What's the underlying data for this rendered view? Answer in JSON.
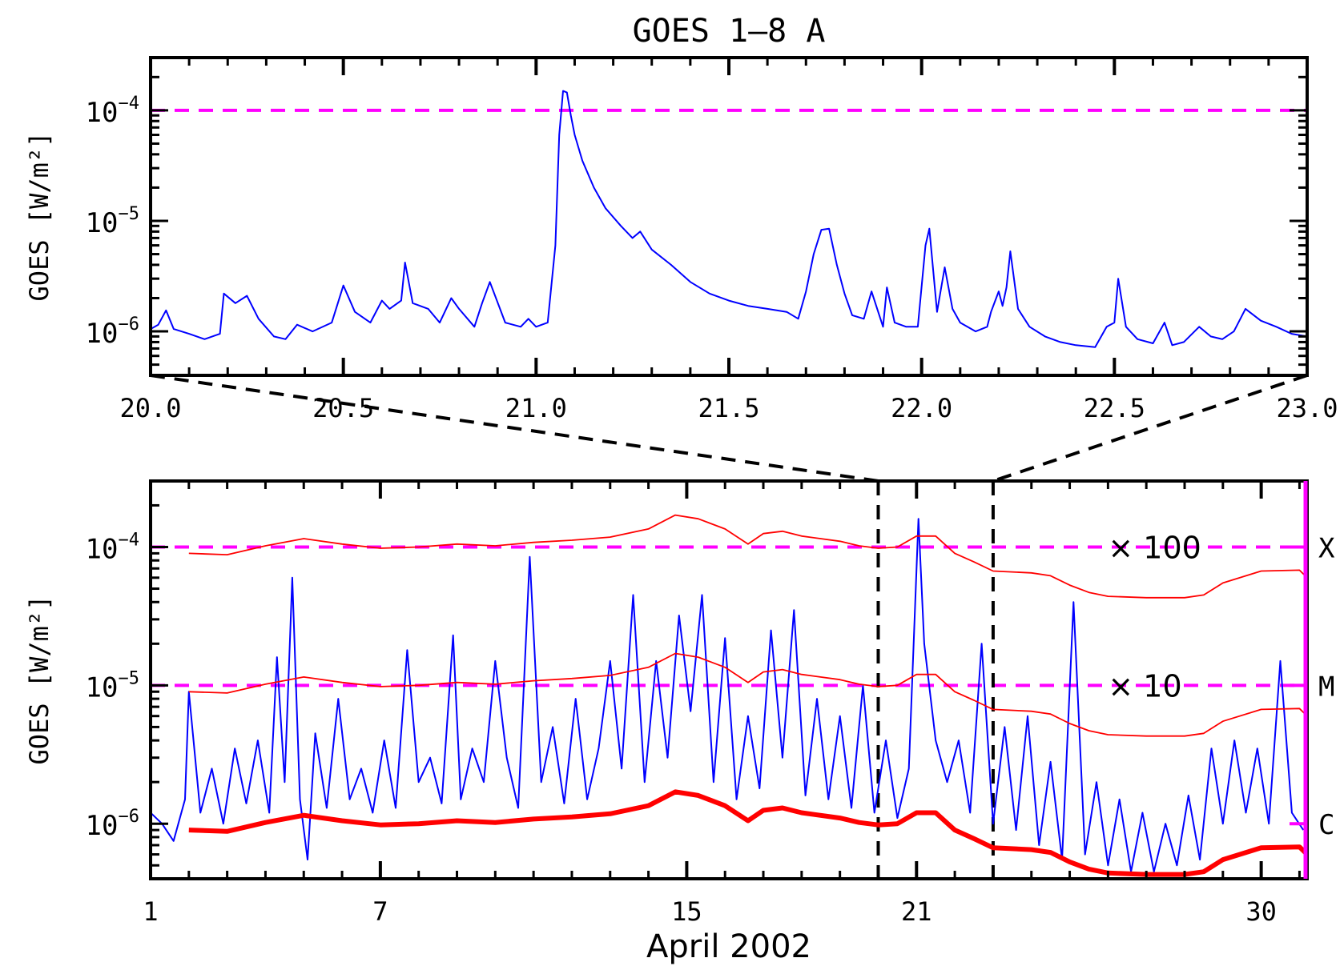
{
  "colors": {
    "flux": "#0000ff",
    "background": "#ff0000",
    "threshold": "#ff00ff",
    "frame": "#000000",
    "zoom_lines": "#000000"
  },
  "chart_data": [
    {
      "type": "line",
      "title": "GOES 1–8 A",
      "xlabel": "",
      "ylabel": "GOES [W/m²]",
      "yscale": "log",
      "xlim": [
        20.0,
        23.0
      ],
      "ylim": [
        4e-07,
        0.0003
      ],
      "xticks": [
        20.0,
        20.5,
        21.0,
        21.5,
        22.0,
        22.5,
        23.0
      ],
      "xtick_labels": [
        "20.0",
        "20.5",
        "21.0",
        "21.5",
        "22.0",
        "22.5",
        "23.0"
      ],
      "yticks": [
        1e-06,
        1e-05,
        0.0001
      ],
      "ytick_labels": [
        {
          "base": "10",
          "exp": "−6"
        },
        {
          "base": "10",
          "exp": "−5"
        },
        {
          "base": "10",
          "exp": "−4"
        }
      ],
      "grid": false,
      "hlines": [
        {
          "y": 0.0001,
          "style": "dashed",
          "color": "#ff00ff"
        }
      ],
      "series": [
        {
          "color": "#0000ff",
          "x": [
            20.0,
            20.02,
            20.04,
            20.06,
            20.1,
            20.14,
            20.18,
            20.19,
            20.22,
            20.25,
            20.28,
            20.32,
            20.35,
            20.38,
            20.42,
            20.47,
            20.5,
            20.53,
            20.57,
            20.6,
            20.62,
            20.65,
            20.66,
            20.68,
            20.72,
            20.75,
            20.78,
            20.8,
            20.84,
            20.86,
            20.88,
            20.92,
            20.96,
            20.98,
            21.0,
            21.03,
            21.05,
            21.06,
            21.07,
            21.08,
            21.09,
            21.1,
            21.12,
            21.15,
            21.18,
            21.22,
            21.25,
            21.27,
            21.3,
            21.35,
            21.4,
            21.45,
            21.5,
            21.55,
            21.6,
            21.65,
            21.68,
            21.7,
            21.72,
            21.74,
            21.76,
            21.78,
            21.8,
            21.82,
            21.85,
            21.87,
            21.9,
            21.91,
            21.93,
            21.96,
            21.99,
            22.01,
            22.02,
            22.04,
            22.06,
            22.08,
            22.1,
            22.14,
            22.17,
            22.18,
            22.2,
            22.21,
            22.22,
            22.23,
            22.25,
            22.28,
            22.32,
            22.36,
            22.4,
            22.45,
            22.48,
            22.5,
            22.51,
            22.53,
            22.56,
            22.6,
            22.63,
            22.65,
            22.68,
            22.72,
            22.75,
            22.78,
            22.81,
            22.84,
            22.88,
            22.92,
            22.96,
            23.0
          ],
          "y": [
            1.05e-06,
            1.15e-06,
            1.55e-06,
            1.05e-06,
            9.5e-07,
            8.5e-07,
            9.5e-07,
            2.2e-06,
            1.8e-06,
            2.1e-06,
            1.3e-06,
            9e-07,
            8.5e-07,
            1.15e-06,
            1e-06,
            1.2e-06,
            2.6e-06,
            1.5e-06,
            1.2e-06,
            1.9e-06,
            1.6e-06,
            1.9e-06,
            4.2e-06,
            1.8e-06,
            1.6e-06,
            1.2e-06,
            2e-06,
            1.6e-06,
            1.1e-06,
            1.8e-06,
            2.8e-06,
            1.2e-06,
            1.1e-06,
            1.3e-06,
            1.1e-06,
            1.2e-06,
            6e-06,
            6e-05,
            0.00015,
            0.000145,
            9e-05,
            6e-05,
            3.5e-05,
            2e-05,
            1.3e-05,
            9e-06,
            7e-06,
            8e-06,
            5.5e-06,
            4e-06,
            2.8e-06,
            2.2e-06,
            1.9e-06,
            1.7e-06,
            1.6e-06,
            1.5e-06,
            1.3e-06,
            2.3e-06,
            5e-06,
            8.3e-06,
            8.5e-06,
            4e-06,
            2.2e-06,
            1.4e-06,
            1.3e-06,
            2.3e-06,
            1.1e-06,
            2.5e-06,
            1.2e-06,
            1.1e-06,
            1.1e-06,
            6e-06,
            8.5e-06,
            1.5e-06,
            3.8e-06,
            1.6e-06,
            1.2e-06,
            1e-06,
            1.1e-06,
            1.5e-06,
            2.3e-06,
            1.7e-06,
            2.5e-06,
            5.3e-06,
            1.6e-06,
            1.1e-06,
            9e-07,
            8e-07,
            7.5e-07,
            7.2e-07,
            1.1e-06,
            1.2e-06,
            3e-06,
            1.1e-06,
            8.5e-07,
            7.8e-07,
            1.2e-06,
            7.5e-07,
            8e-07,
            1.1e-06,
            9e-07,
            8.5e-07,
            1e-06,
            1.6e-06,
            1.25e-06,
            1.1e-06,
            9.5e-07,
            9e-07
          ]
        }
      ]
    },
    {
      "type": "line",
      "title": "",
      "xlabel": "April 2002",
      "ylabel": "GOES [W/m²]",
      "yscale": "log",
      "xlim": [
        1,
        31.2
      ],
      "ylim": [
        4e-07,
        0.0003
      ],
      "xticks": [
        1,
        7,
        15,
        21,
        30
      ],
      "xtick_labels": [
        "1",
        "7",
        "15",
        "21",
        "30"
      ],
      "yticks": [
        1e-06,
        1e-05,
        0.0001
      ],
      "ytick_labels": [
        {
          "base": "10",
          "exp": "−6"
        },
        {
          "base": "10",
          "exp": "−5"
        },
        {
          "base": "10",
          "exp": "−4"
        }
      ],
      "grid": false,
      "hlines": [
        {
          "y": 0.0001,
          "style": "dashed",
          "color": "#ff00ff"
        },
        {
          "y": 1e-05,
          "style": "dashed",
          "color": "#ff00ff"
        }
      ],
      "vlines": [
        {
          "x": 20.0,
          "style": "dashed",
          "color": "#000000"
        },
        {
          "x": 23.0,
          "style": "dashed",
          "color": "#000000"
        }
      ],
      "annotations": [
        {
          "text": "× 100",
          "x": 26.0,
          "y": 0.0001,
          "color": "#ff0000"
        },
        {
          "text": "× 10",
          "x": 26.0,
          "y": 1e-05,
          "color": "#ff0000"
        }
      ],
      "right_axis": {
        "color": "#ff00ff",
        "labels": [
          {
            "text": "X",
            "y": 0.0001
          },
          {
            "text": "M",
            "y": 1e-05
          },
          {
            "text": "C",
            "y": 1e-06
          }
        ]
      },
      "series": [
        {
          "color": "#0000ff",
          "x": [
            1.0,
            1.3,
            1.6,
            1.9,
            2.0,
            2.3,
            2.6,
            2.9,
            3.2,
            3.5,
            3.8,
            4.1,
            4.3,
            4.5,
            4.7,
            4.9,
            5.1,
            5.3,
            5.6,
            5.9,
            6.2,
            6.5,
            6.8,
            7.1,
            7.4,
            7.7,
            8.0,
            8.3,
            8.6,
            8.9,
            9.1,
            9.4,
            9.7,
            10.0,
            10.3,
            10.6,
            10.9,
            11.2,
            11.5,
            11.8,
            12.1,
            12.4,
            12.7,
            13.0,
            13.3,
            13.6,
            13.9,
            14.2,
            14.5,
            14.8,
            15.1,
            15.4,
            15.7,
            16.0,
            16.3,
            16.6,
            16.9,
            17.2,
            17.5,
            17.8,
            18.1,
            18.4,
            18.7,
            19.0,
            19.3,
            19.6,
            19.9,
            20.2,
            20.5,
            20.8,
            21.05,
            21.2,
            21.5,
            21.8,
            22.1,
            22.4,
            22.7,
            23.0,
            23.3,
            23.6,
            23.9,
            24.2,
            24.5,
            24.8,
            25.1,
            25.4,
            25.7,
            26.0,
            26.3,
            26.6,
            26.9,
            27.2,
            27.5,
            27.8,
            28.1,
            28.4,
            28.7,
            29.0,
            29.3,
            29.6,
            29.9,
            30.2,
            30.5,
            30.8,
            31.1
          ],
          "y": [
            1.2e-06,
            1e-06,
            7.5e-07,
            1.5e-06,
            9e-06,
            1.2e-06,
            2.5e-06,
            1e-06,
            3.5e-06,
            1.4e-06,
            4e-06,
            1.2e-06,
            1.6e-05,
            2e-06,
            6e-05,
            1.5e-06,
            5.5e-07,
            4.5e-06,
            1.3e-06,
            8e-06,
            1.5e-06,
            2.5e-06,
            1.2e-06,
            4e-06,
            1.3e-06,
            1.8e-05,
            2e-06,
            3e-06,
            1.4e-06,
            2.3e-05,
            1.5e-06,
            3.5e-06,
            2e-06,
            1.5e-05,
            3e-06,
            1.3e-06,
            8.5e-05,
            2e-06,
            5e-06,
            1.4e-06,
            8e-06,
            1.5e-06,
            3.5e-06,
            1.5e-05,
            2.5e-06,
            4.5e-05,
            2e-06,
            1.5e-05,
            3e-06,
            3.2e-05,
            6.5e-06,
            4.5e-05,
            2e-06,
            2.2e-05,
            1.5e-06,
            6e-06,
            1.8e-06,
            2.5e-05,
            3e-06,
            3.5e-05,
            1.6e-06,
            8e-06,
            1.5e-06,
            6e-06,
            1.3e-06,
            1e-05,
            1.2e-06,
            4e-06,
            1.1e-06,
            2.5e-06,
            0.00016,
            2e-05,
            4e-06,
            2e-06,
            4e-06,
            1.2e-06,
            2e-05,
            1e-06,
            5e-06,
            9e-07,
            6e-06,
            7e-07,
            2.8e-06,
            5.5e-07,
            4e-05,
            6e-07,
            2e-06,
            5e-07,
            1.5e-06,
            4.5e-07,
            1.2e-06,
            4.5e-07,
            1e-06,
            5e-07,
            1.6e-06,
            5.5e-07,
            3.5e-06,
            1e-06,
            4e-06,
            1.2e-06,
            3.5e-06,
            1e-06,
            1.5e-05,
            1.2e-06,
            9e-07
          ]
        },
        {
          "color": "#ff0000",
          "width": "thick",
          "x": [
            2.0,
            3.0,
            4.0,
            5.0,
            6.0,
            7.0,
            8.0,
            9.0,
            10.0,
            11.0,
            12.0,
            13.0,
            14.0,
            14.7,
            15.3,
            16.0,
            16.6,
            17.0,
            17.5,
            18.0,
            19.0,
            19.5,
            20.0,
            20.5,
            21.0,
            21.5,
            22.0,
            22.5,
            23.0,
            24.0,
            24.5,
            25.0,
            25.5,
            26.0,
            27.0,
            28.0,
            28.5,
            29.0,
            30.0,
            31.0,
            31.2
          ],
          "y": [
            9e-07,
            8.8e-07,
            1.02e-06,
            1.15e-06,
            1.05e-06,
            9.8e-07,
            1e-06,
            1.05e-06,
            1.02e-06,
            1.08e-06,
            1.12e-06,
            1.18e-06,
            1.35e-06,
            1.7e-06,
            1.6e-06,
            1.35e-06,
            1.05e-06,
            1.25e-06,
            1.3e-06,
            1.2e-06,
            1.1e-06,
            1.02e-06,
            9.8e-07,
            1e-06,
            1.2e-06,
            1.2e-06,
            9e-07,
            7.8e-07,
            6.7e-07,
            6.5e-07,
            6.2e-07,
            5.3e-07,
            4.7e-07,
            4.4e-07,
            4.3e-07,
            4.3e-07,
            4.5e-07,
            5.5e-07,
            6.7e-07,
            6.8e-07,
            6e-07
          ]
        },
        {
          "color": "#ff0000",
          "width": "thin",
          "x": [
            2.0,
            3.0,
            4.0,
            5.0,
            6.0,
            7.0,
            8.0,
            9.0,
            10.0,
            11.0,
            12.0,
            13.0,
            14.0,
            14.7,
            15.3,
            16.0,
            16.6,
            17.0,
            17.5,
            18.0,
            19.0,
            19.5,
            20.0,
            20.5,
            21.0,
            21.5,
            22.0,
            22.5,
            23.0,
            24.0,
            24.5,
            25.0,
            25.5,
            26.0,
            27.0,
            28.0,
            28.5,
            29.0,
            30.0,
            31.0,
            31.2
          ],
          "y": [
            9e-06,
            8.8e-06,
            1.02e-05,
            1.15e-05,
            1.05e-05,
            9.8e-06,
            1e-05,
            1.05e-05,
            1.02e-05,
            1.08e-05,
            1.12e-05,
            1.18e-05,
            1.35e-05,
            1.7e-05,
            1.6e-05,
            1.35e-05,
            1.05e-05,
            1.25e-05,
            1.3e-05,
            1.2e-05,
            1.1e-05,
            1.02e-05,
            9.8e-06,
            1e-05,
            1.2e-05,
            1.2e-05,
            9e-06,
            7.8e-06,
            6.7e-06,
            6.5e-06,
            6.2e-06,
            5.3e-06,
            4.7e-06,
            4.4e-06,
            4.3e-06,
            4.3e-06,
            4.5e-06,
            5.5e-06,
            6.7e-06,
            6.8e-06,
            6e-06
          ]
        },
        {
          "color": "#ff0000",
          "width": "thin",
          "x": [
            2.0,
            3.0,
            4.0,
            5.0,
            6.0,
            7.0,
            8.0,
            9.0,
            10.0,
            11.0,
            12.0,
            13.0,
            14.0,
            14.7,
            15.3,
            16.0,
            16.6,
            17.0,
            17.5,
            18.0,
            19.0,
            19.5,
            20.0,
            20.5,
            21.0,
            21.5,
            22.0,
            22.5,
            23.0,
            24.0,
            24.5,
            25.0,
            25.5,
            26.0,
            27.0,
            28.0,
            28.5,
            29.0,
            30.0,
            31.0,
            31.2
          ],
          "y": [
            9e-05,
            8.8e-05,
            0.000102,
            0.000115,
            0.000105,
            9.8e-05,
            0.0001,
            0.000105,
            0.000102,
            0.000108,
            0.000112,
            0.000118,
            0.000135,
            0.00017,
            0.00016,
            0.000135,
            0.000105,
            0.000125,
            0.00013,
            0.00012,
            0.00011,
            0.000102,
            9.8e-05,
            0.0001,
            0.00012,
            0.00012,
            9e-05,
            7.8e-05,
            6.7e-05,
            6.5e-05,
            6.2e-05,
            5.3e-05,
            4.7e-05,
            4.4e-05,
            4.3e-05,
            4.3e-05,
            4.5e-05,
            5.5e-05,
            6.7e-05,
            6.8e-05,
            6e-05
          ]
        }
      ]
    }
  ]
}
